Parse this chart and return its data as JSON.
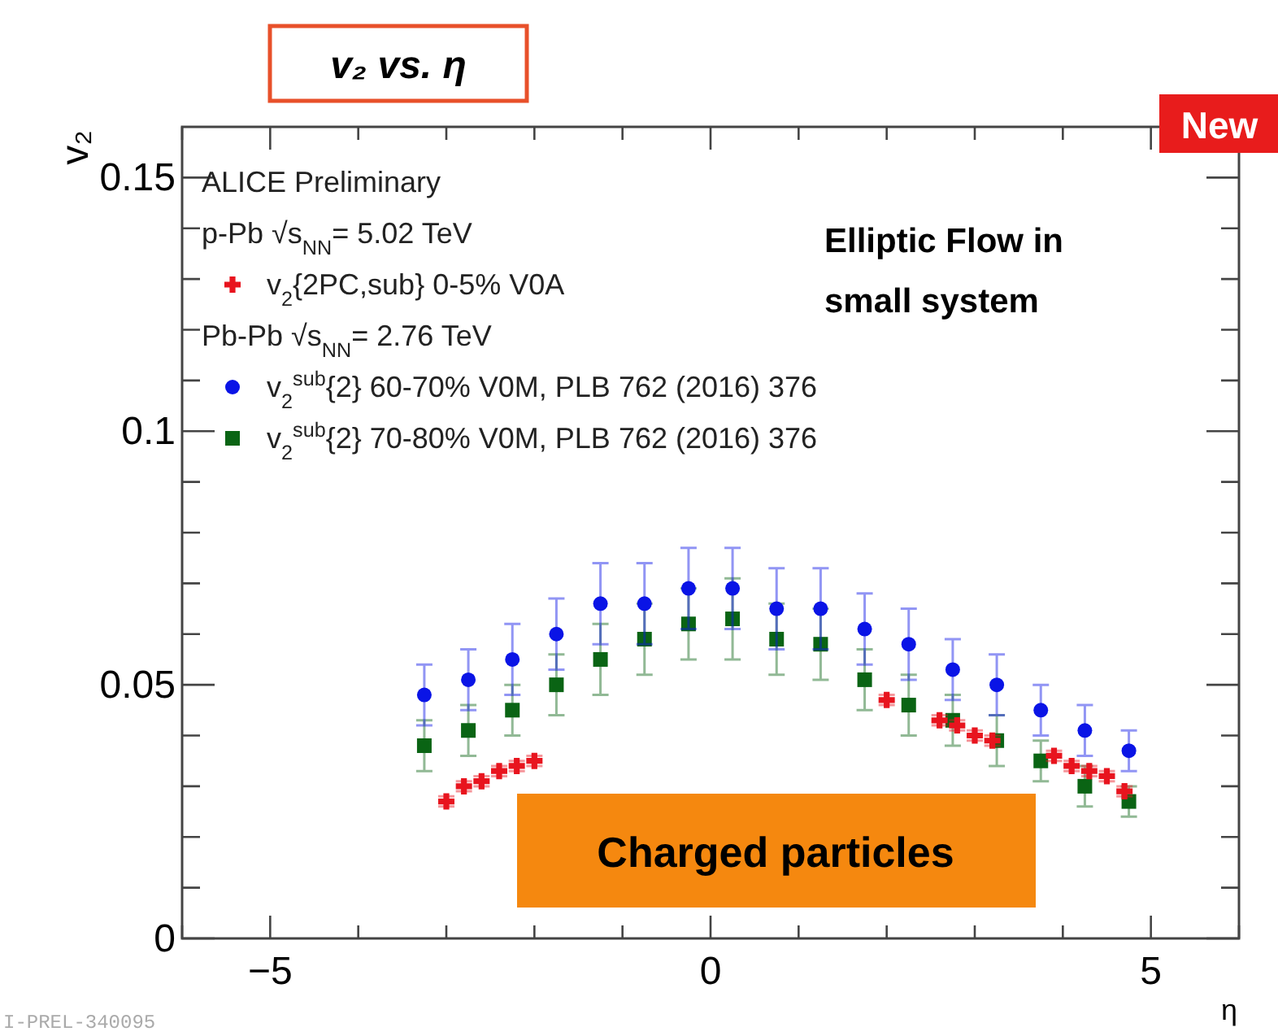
{
  "chart_data": {
    "type": "scatter",
    "title": "v₂ vs. η",
    "xlabel": "η",
    "ylabel": "v₂",
    "xlim": [
      -6,
      6
    ],
    "ylim": [
      0,
      0.16
    ],
    "xticks": [
      {
        "value": -6,
        "label": null
      },
      -5,
      {
        "value": -4,
        "label": null
      },
      {
        "value": -3,
        "label": null
      },
      {
        "value": -2,
        "label": null
      },
      {
        "value": -1,
        "label": null
      },
      0,
      {
        "value": 1,
        "label": null
      },
      {
        "value": 2,
        "label": null
      },
      {
        "value": 3,
        "label": null
      },
      {
        "value": 4,
        "label": null
      },
      5,
      {
        "value": 6,
        "label": null
      }
    ],
    "yticks": [
      0,
      {
        "value": 0.01,
        "label": null
      },
      {
        "value": 0.02,
        "label": null
      },
      {
        "value": 0.03,
        "label": null
      },
      {
        "value": 0.04,
        "label": null
      },
      0.05,
      {
        "value": 0.06,
        "label": null
      },
      {
        "value": 0.07,
        "label": null
      },
      {
        "value": 0.08,
        "label": null
      },
      {
        "value": 0.09,
        "label": null
      },
      0.1,
      {
        "value": 0.11,
        "label": null
      },
      {
        "value": 0.12,
        "label": null
      },
      {
        "value": 0.13,
        "label": null
      },
      {
        "value": 0.14,
        "label": null
      },
      0.15
    ],
    "legend": "top left",
    "grid": false,
    "series": [
      {
        "name": "v$_{2}${2PC,sub} 0-5% V0A",
        "color": "#e8141e",
        "marker": "cross",
        "x": [
          -3.0,
          -2.8,
          -2.6,
          -2.4,
          -2.2,
          -2.0,
          2.0,
          2.6,
          2.8,
          3.0,
          3.2,
          3.9,
          4.1,
          4.3,
          4.5,
          4.7
        ],
        "values": [
          0.027,
          0.03,
          0.031,
          0.033,
          0.034,
          0.035,
          0.047,
          0.043,
          0.042,
          0.04,
          0.039,
          0.036,
          0.034,
          0.033,
          0.032,
          0.029
        ],
        "errors": [
          0.001,
          0.001,
          0.001,
          0.001,
          0.001,
          0.001,
          0.001,
          0.001,
          0.001,
          0.001,
          0.001,
          0.001,
          0.001,
          0.001,
          0.001,
          0.001
        ]
      },
      {
        "name": "v$_{2}$$^{sub}${2} 60-70% V0M, PLB 762 (2016) 376",
        "color": "#0a14e6",
        "marker": "circle",
        "x": [
          -3.25,
          -2.75,
          -2.25,
          -1.75,
          -1.25,
          -0.75,
          -0.25,
          0.25,
          0.75,
          1.25,
          1.75,
          2.25,
          2.75,
          3.25,
          3.75,
          4.25,
          4.75
        ],
        "values": [
          0.048,
          0.051,
          0.055,
          0.06,
          0.066,
          0.066,
          0.069,
          0.069,
          0.065,
          0.065,
          0.061,
          0.058,
          0.053,
          0.05,
          0.045,
          0.041,
          0.037
        ],
        "errors": [
          0.006,
          0.006,
          0.007,
          0.007,
          0.008,
          0.008,
          0.008,
          0.008,
          0.008,
          0.008,
          0.007,
          0.007,
          0.006,
          0.006,
          0.005,
          0.005,
          0.004
        ]
      },
      {
        "name": "v$_{2}$$^{sub}${2} 70-80% V0M, PLB 762 (2016) 376",
        "color": "#0a6414",
        "marker": "square",
        "x": [
          -3.25,
          -2.75,
          -2.25,
          -1.75,
          -1.25,
          -0.75,
          -0.25,
          0.25,
          0.75,
          1.25,
          1.75,
          2.25,
          2.75,
          3.25,
          3.75,
          4.25,
          4.75
        ],
        "values": [
          0.038,
          0.041,
          0.045,
          0.05,
          0.055,
          0.059,
          0.062,
          0.063,
          0.059,
          0.058,
          0.051,
          0.046,
          0.043,
          0.039,
          0.035,
          0.03,
          0.027
        ],
        "errors": [
          0.005,
          0.005,
          0.005,
          0.006,
          0.007,
          0.007,
          0.007,
          0.008,
          0.007,
          0.007,
          0.006,
          0.006,
          0.005,
          0.005,
          0.004,
          0.004,
          0.003
        ]
      }
    ],
    "annotations": [
      "ALICE Preliminary",
      "p-Pb √s$_{NN}$= 5.02 TeV",
      "Pb-Pb √s$_{NN}$= 2.76 TeV",
      "Elliptic Flow in small system",
      "Charged particles",
      "New",
      "I-PREL-340095"
    ]
  }
}
